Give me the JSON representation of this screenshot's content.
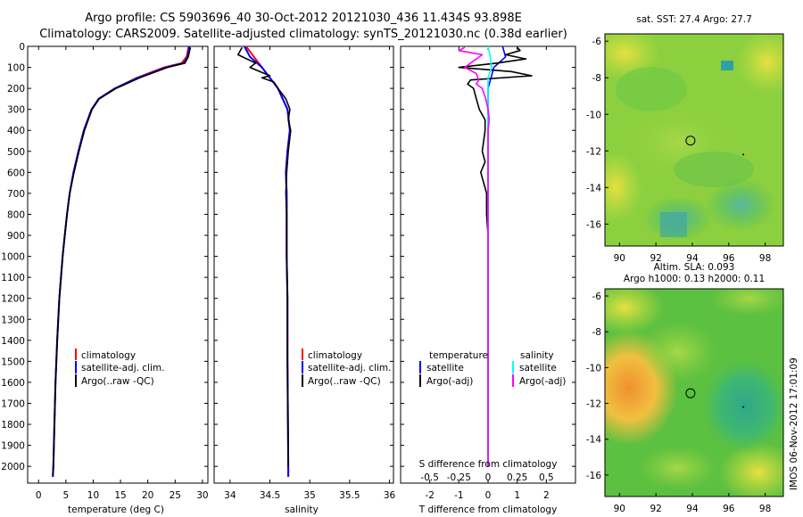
{
  "header": {
    "line1": "Argo profile: CS 5903696_40 30-Oct-2012 20121030_436 11.434S 93.898E",
    "line2": "Climatology: CARS2009. Satellite-adjusted climatology: synTS_20121030.nc (0.38d earlier)"
  },
  "side_stamp": "IMOS 06-Nov-2012 17:01:09",
  "colors": {
    "climatology": "#ff0000",
    "satellite": "#0000ff",
    "argo": "#000000",
    "salinity_satellite": "#00ffff",
    "salinity_argo": "#ff00ff"
  },
  "chart_data": [
    {
      "type": "line",
      "id": "temperature",
      "xlabel": "temperature (deg C)",
      "xlim": [
        -2,
        31
      ],
      "xticks": [
        0,
        5,
        10,
        15,
        20,
        25,
        30
      ],
      "ylim": [
        2080,
        0
      ],
      "yticks": [
        0,
        100,
        200,
        300,
        400,
        500,
        600,
        700,
        800,
        900,
        1000,
        1100,
        1200,
        1300,
        1400,
        1500,
        1600,
        1700,
        1800,
        1900,
        2000
      ],
      "legend": [
        "climatology",
        "satellite-adj. clim.",
        "Argo(..raw -QC)"
      ],
      "series": [
        {
          "name": "climatology",
          "depth": [
            0,
            50,
            80,
            100,
            150,
            200,
            250,
            300,
            400,
            500,
            600,
            700,
            800,
            900,
            1000,
            1200,
            1400,
            1600,
            1800,
            2000,
            2050
          ],
          "values": [
            27.5,
            27.1,
            26.2,
            23,
            18,
            14,
            11,
            9.7,
            8.3,
            7.3,
            6.4,
            5.7,
            5.2,
            4.8,
            4.4,
            3.8,
            3.4,
            3.1,
            2.9,
            2.7,
            2.6
          ]
        },
        {
          "name": "satellite-adj. clim.",
          "depth": [
            0,
            50,
            80,
            100,
            150,
            200,
            250,
            300,
            400,
            500,
            600,
            700,
            800,
            900,
            1000,
            1200,
            1400,
            1600,
            1800,
            2000,
            2050
          ],
          "values": [
            27.6,
            27.3,
            26.6,
            23.4,
            18.2,
            14,
            11,
            9.7,
            8.3,
            7.3,
            6.4,
            5.7,
            5.2,
            4.8,
            4.4,
            3.8,
            3.4,
            3.1,
            2.9,
            2.7,
            2.6
          ]
        },
        {
          "name": "Argo(..raw -QC)",
          "depth": [
            5,
            50,
            80,
            100,
            150,
            200,
            250,
            300,
            400,
            500,
            600,
            700,
            800,
            900,
            1000,
            1200,
            1400,
            1600,
            1800,
            2000,
            2040
          ],
          "values": [
            27.8,
            27.4,
            26.8,
            23.6,
            18.5,
            14.2,
            11.1,
            9.8,
            8.4,
            7.4,
            6.5,
            5.7,
            5.2,
            4.8,
            4.4,
            3.8,
            3.4,
            3.1,
            2.9,
            2.7,
            2.6
          ]
        }
      ]
    },
    {
      "type": "line",
      "id": "salinity",
      "xlabel": "salinity",
      "xlim": [
        33.8,
        36.05
      ],
      "xticks": [
        34,
        34.5,
        35,
        35.5,
        36
      ],
      "ylim": [
        2080,
        0
      ],
      "legend": [
        "climatology",
        "satellite-adj. clim.",
        "Argo(..raw -QC)"
      ],
      "series": [
        {
          "name": "climatology",
          "depth": [
            0,
            50,
            100,
            150,
            200,
            300,
            400,
            500,
            600,
            700,
            800,
            1000,
            1200,
            1500,
            2000,
            2050
          ],
          "values": [
            34.2,
            34.3,
            34.4,
            34.5,
            34.6,
            34.72,
            34.75,
            34.72,
            34.7,
            34.71,
            34.71,
            34.71,
            34.72,
            34.72,
            34.73,
            34.73
          ]
        },
        {
          "name": "satellite-adj. clim.",
          "depth": [
            0,
            50,
            100,
            150,
            200,
            300,
            400,
            500,
            600,
            700,
            800,
            1000,
            1200,
            1500,
            2000,
            2050
          ],
          "values": [
            34.18,
            34.25,
            34.4,
            34.5,
            34.6,
            34.72,
            34.75,
            34.72,
            34.7,
            34.71,
            34.71,
            34.71,
            34.72,
            34.72,
            34.73,
            34.73
          ]
        },
        {
          "name": "Argo(..raw -QC)",
          "depth": [
            5,
            40,
            80,
            100,
            140,
            150,
            170,
            200,
            250,
            300,
            350,
            400,
            500,
            600,
            700,
            800,
            1000,
            1200,
            1500,
            2000
          ],
          "values": [
            34.15,
            34.1,
            34.32,
            34.25,
            34.5,
            34.4,
            34.55,
            34.6,
            34.7,
            34.75,
            34.73,
            34.76,
            34.73,
            34.71,
            34.7,
            34.71,
            34.71,
            34.72,
            34.72,
            34.73
          ]
        }
      ]
    },
    {
      "type": "line",
      "id": "differences",
      "xlabel": "T difference from climatology",
      "xlabel_top": "S difference from climatology",
      "xlim": [
        -3,
        3
      ],
      "xticks": [
        -2,
        -1,
        0,
        1,
        2
      ],
      "xlim_salinity": [
        -0.75,
        0.75
      ],
      "xticks_salinity": [
        -0.5,
        -0.25,
        0,
        0.25,
        0.5
      ],
      "ylim": [
        2080,
        0
      ],
      "legend_headers": [
        "temperature",
        "salinity"
      ],
      "legend": [
        "satellite",
        "Argo(-adj)",
        "satellite",
        "Argo(-adj)"
      ],
      "series": [
        {
          "name": "temperature satellite",
          "depth": [
            0,
            50,
            100,
            150,
            200,
            300,
            500,
            1000,
            2000
          ],
          "values": [
            0.5,
            0.6,
            0.2,
            0.1,
            0,
            0,
            0,
            0,
            0
          ]
        },
        {
          "name": "temperature Argo(-adj)",
          "depth": [
            5,
            20,
            40,
            60,
            80,
            100,
            120,
            140,
            160,
            180,
            200,
            250,
            300,
            350,
            400,
            450,
            500,
            550,
            600,
            650,
            700,
            800,
            900,
            1000,
            1500,
            2000
          ],
          "values": [
            1,
            1.1,
            0.6,
            1.3,
            0.3,
            -1,
            0.8,
            1.5,
            -0.6,
            -0.7,
            -0.5,
            -0.4,
            -0.3,
            -0.1,
            -0.1,
            -0.15,
            -0.2,
            -0.1,
            -0.25,
            -0.15,
            -0.05,
            -0.05,
            0,
            0,
            0,
            0
          ]
        },
        {
          "name": "salinity satellite",
          "depth": [
            0,
            50,
            100,
            150,
            200,
            300,
            500,
            1000,
            2000
          ],
          "values": [
            0,
            0.02,
            0.03,
            0,
            0,
            0,
            0,
            0,
            0
          ]
        },
        {
          "name": "salinity Argo(-adj)",
          "depth": [
            5,
            20,
            40,
            60,
            80,
            100,
            130,
            160,
            180,
            200,
            250,
            300,
            350,
            400,
            500,
            700,
            1000,
            2000
          ],
          "values": [
            -0.2,
            -0.25,
            -0.05,
            -0.1,
            -0.15,
            -0.2,
            -0.1,
            -0.08,
            -0.1,
            -0.05,
            -0.02,
            0,
            0.01,
            0,
            0,
            0,
            0,
            0
          ]
        }
      ]
    },
    {
      "type": "heatmap",
      "id": "sst_map",
      "title": "sat. SST: 27.4 Argo: 27.7",
      "xlim": [
        89.2,
        99
      ],
      "xticks": [
        90,
        92,
        94,
        96,
        98
      ],
      "ylim": [
        -17.2,
        -5.6
      ],
      "yticks": [
        -6,
        -8,
        -10,
        -12,
        -14,
        -16
      ],
      "argo_position": {
        "lon": 93.898,
        "lat": -11.434
      }
    },
    {
      "type": "heatmap",
      "id": "sla_map",
      "title": "Altim. SLA: 0.093",
      "subtitle": "Argo h1000: 0.13 h2000: 0.11",
      "xlim": [
        89.2,
        99
      ],
      "xticks": [
        90,
        92,
        94,
        96,
        98
      ],
      "ylim": [
        -17.2,
        -5.6
      ],
      "yticks": [
        -6,
        -8,
        -10,
        -12,
        -14,
        -16
      ],
      "argo_position": {
        "lon": 93.898,
        "lat": -11.434
      }
    }
  ]
}
